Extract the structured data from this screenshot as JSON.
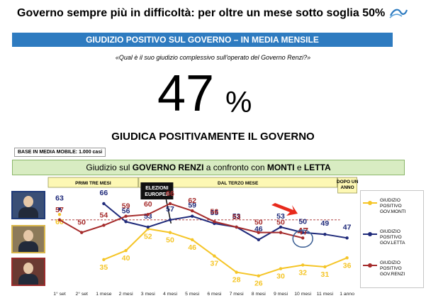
{
  "header": {
    "title": "Governo sempre più in difficoltà: per oltre un mese sotto soglia 50%",
    "logo_icon": "stylized-logo-icon"
  },
  "band": {
    "label": "GIUDIZIO POSITIVO SUL GOVERNO – IN MEDIA MENSILE"
  },
  "question": "«Qual è il suo giudizio complessivo sull'operato del Governo Renzi?»",
  "kpi": {
    "value": "47",
    "unit": "%"
  },
  "subtitle": "GIUDICA POSITIVAMENTE IL GOVERNO",
  "base_note": "BASE IN MEDIA MOBILE: 1.000 casi",
  "comparison_title": {
    "prefix": "Giudizio sul ",
    "renzi": "GOVERNO RENZI",
    "middle": " a confronto con ",
    "monti": "MONTI",
    "and": " e ",
    "letta": "LETTA"
  },
  "colors": {
    "band": "#2e7bc0",
    "monti": "#f5c527",
    "letta": "#1f2a7a",
    "renzi": "#a52b2b",
    "phase_fill": "#fdf8b4",
    "arrow": "#e82a1c"
  },
  "photos": [
    {
      "name": "monti-portrait"
    },
    {
      "name": "letta-portrait"
    },
    {
      "name": "renzi-portrait"
    }
  ],
  "chart_data": {
    "type": "line",
    "categories": [
      "1° set",
      "2° set",
      "1 mese",
      "2 mesi",
      "3 mesi",
      "4 mesi",
      "5 mesi",
      "6 mesi",
      "7 mesi",
      "8 mesi",
      "9 mesi",
      "10 mesi",
      "11 mesi",
      "1 anno"
    ],
    "series": [
      {
        "name": "GIUDIZIO POSITIVO GOV.MONTI",
        "key": "monti",
        "values": [
          60,
          null,
          35,
          40,
          52,
          50,
          46,
          37,
          28,
          26,
          30,
          32,
          31,
          36
        ]
      },
      {
        "name": "GIUDIZIO POSITIVO GOV.LETTA",
        "key": "letta",
        "values": [
          63,
          null,
          66,
          56,
          53,
          57,
          59,
          55,
          53,
          46,
          53,
          50,
          49,
          47
        ]
      },
      {
        "name": "GIUDIZIO POSITIVO GOV.RENZI",
        "key": "renzi",
        "values": [
          57,
          50,
          54,
          59,
          60,
          66,
          62,
          56,
          53,
          50,
          50,
          47,
          null,
          null
        ]
      }
    ],
    "reference_line": 57,
    "ylim": [
      20,
      75
    ],
    "phases": [
      {
        "label": "PRIMI TRE MESI",
        "from": 0,
        "to": 4
      },
      {
        "label": "DAL TERZO MESE",
        "from": 4,
        "to": 13
      },
      {
        "label": "DOPO UN ANNO",
        "from": 13,
        "to": 14
      }
    ],
    "annotations": [
      {
        "label": "ELEZIONI EUROPEE",
        "at": 4.5
      }
    ],
    "highlight": {
      "series": "renzi",
      "index": 11
    },
    "legend_position": "right"
  }
}
